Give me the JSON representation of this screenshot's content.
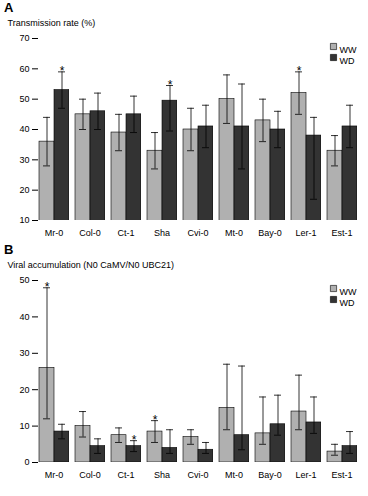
{
  "chart_data": [
    {
      "type": "bar",
      "title": "A",
      "categories": [
        "Mr-0",
        "Col-0",
        "Ct-1",
        "Sha",
        "Cvi-0",
        "Mt-0",
        "Bay-0",
        "Ler-1",
        "Est-1"
      ],
      "ylabel": "Transmission rate (%)",
      "ylim": [
        10,
        70
      ],
      "yticks": [
        10,
        20,
        30,
        40,
        50,
        60,
        70
      ],
      "legend": "upper right",
      "series": [
        {
          "name": "WW",
          "color": "#b0b0b0",
          "values": [
            36,
            45,
            39,
            33,
            40,
            50,
            43,
            52,
            33
          ],
          "err_low": [
            8,
            5,
            6,
            6,
            7,
            8,
            7,
            7,
            5
          ],
          "err_high": [
            8,
            5,
            6,
            6,
            7,
            8,
            7,
            7,
            5
          ]
        },
        {
          "name": "WD",
          "color": "#333333",
          "values": [
            53,
            46,
            45,
            49.5,
            41,
            41,
            40,
            38,
            41
          ],
          "err_low": [
            6,
            6,
            6,
            10,
            7,
            14,
            6,
            21,
            7
          ],
          "err_high": [
            6,
            6,
            6,
            5,
            7,
            14,
            6,
            6,
            7
          ]
        }
      ],
      "annotations": [
        {
          "text": "*",
          "series": "WD",
          "category": "Mr-0"
        },
        {
          "text": "*",
          "series": "WD",
          "category": "Sha"
        },
        {
          "text": "*",
          "series": "WW",
          "category": "Ler-1"
        }
      ]
    },
    {
      "type": "bar",
      "title": "B",
      "categories": [
        "Mr-0",
        "Col-0",
        "Ct-1",
        "Sha",
        "Cvi-0",
        "Mt-0",
        "Bay-0",
        "Ler-1",
        "Est-1"
      ],
      "ylabel": "Viral accumulation (N0 CaMV/N0 UBC21)",
      "ylim": [
        0,
        50
      ],
      "yticks": [
        0,
        10,
        20,
        30,
        40,
        50
      ],
      "legend": "upper right",
      "series": [
        {
          "name": "WW",
          "color": "#b0b0b0",
          "values": [
            26,
            10,
            7.5,
            8.5,
            7,
            15,
            8,
            14,
            3
          ],
          "err_low": [
            14,
            3,
            2,
            3,
            2,
            6,
            3,
            5,
            1
          ],
          "err_high": [
            22,
            4,
            2,
            3,
            2,
            12,
            10,
            10,
            2
          ]
        },
        {
          "name": "WD",
          "color": "#333333",
          "values": [
            8.5,
            4.5,
            4.5,
            4,
            3.5,
            7.5,
            10.5,
            11,
            4.5
          ],
          "err_low": [
            2,
            2,
            1.5,
            1.5,
            1,
            4,
            3,
            3,
            2
          ],
          "err_high": [
            2,
            2,
            1.5,
            5,
            2,
            19,
            8,
            7,
            4
          ]
        }
      ],
      "annotations": [
        {
          "text": "*",
          "series": "WW",
          "category": "Mr-0"
        },
        {
          "text": "*",
          "series": "WW",
          "category": "Sha"
        },
        {
          "text": "*",
          "series": "WD",
          "category": "Ct-1"
        }
      ]
    }
  ]
}
